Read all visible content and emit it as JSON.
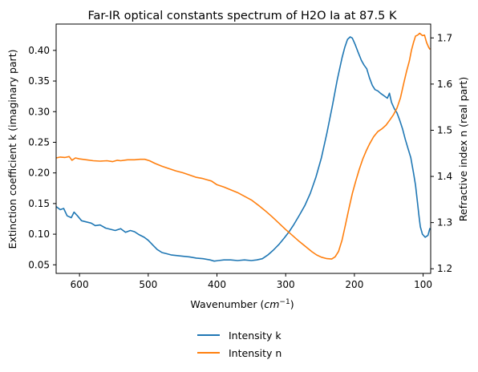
{
  "chart_data": {
    "type": "line",
    "title": "Far-IR optical constants spectrum of H2O Ia at 87.5 K",
    "xlabel_main": "Wavenumber (",
    "xlabel_unit": "cm",
    "xlabel_exp": "−1",
    "xlabel_close": ")",
    "ylabel_left": "Extinction coefficient k (imaginary part)",
    "ylabel_right": "Refractive index n (real part)",
    "x_reversed": true,
    "xlim": [
      634,
      89
    ],
    "ylim_left": [
      0.036,
      0.443
    ],
    "ylim_right": [
      1.19,
      1.73
    ],
    "x_ticks": [
      "600",
      "500",
      "400",
      "300",
      "200",
      "100"
    ],
    "y_left_ticks": [
      "0.05",
      "0.10",
      "0.15",
      "0.20",
      "0.25",
      "0.30",
      "0.35",
      "0.40"
    ],
    "y_right_ticks": [
      "1.2",
      "1.3",
      "1.4",
      "1.5",
      "1.6",
      "1.7"
    ],
    "grid": false,
    "legend_position": "bottom-center",
    "series": [
      {
        "name": "Intensity k",
        "axis": "left",
        "color": "#1f77b4",
        "points": [
          [
            634,
            0.145
          ],
          [
            628,
            0.14
          ],
          [
            623,
            0.142
          ],
          [
            618,
            0.13
          ],
          [
            612,
            0.127
          ],
          [
            608,
            0.136
          ],
          [
            603,
            0.13
          ],
          [
            597,
            0.122
          ],
          [
            590,
            0.12
          ],
          [
            583,
            0.118
          ],
          [
            577,
            0.114
          ],
          [
            570,
            0.115
          ],
          [
            562,
            0.11
          ],
          [
            555,
            0.108
          ],
          [
            548,
            0.106
          ],
          [
            540,
            0.109
          ],
          [
            533,
            0.103
          ],
          [
            526,
            0.106
          ],
          [
            520,
            0.104
          ],
          [
            513,
            0.099
          ],
          [
            506,
            0.095
          ],
          [
            500,
            0.09
          ],
          [
            493,
            0.082
          ],
          [
            487,
            0.075
          ],
          [
            480,
            0.07
          ],
          [
            473,
            0.068
          ],
          [
            466,
            0.066
          ],
          [
            458,
            0.065
          ],
          [
            450,
            0.064
          ],
          [
            440,
            0.063
          ],
          [
            430,
            0.061
          ],
          [
            420,
            0.06
          ],
          [
            410,
            0.058
          ],
          [
            404,
            0.056
          ],
          [
            398,
            0.057
          ],
          [
            390,
            0.058
          ],
          [
            380,
            0.058
          ],
          [
            370,
            0.057
          ],
          [
            360,
            0.058
          ],
          [
            350,
            0.057
          ],
          [
            342,
            0.058
          ],
          [
            334,
            0.06
          ],
          [
            326,
            0.066
          ],
          [
            318,
            0.074
          ],
          [
            310,
            0.083
          ],
          [
            302,
            0.094
          ],
          [
            295,
            0.104
          ],
          [
            288,
            0.116
          ],
          [
            280,
            0.131
          ],
          [
            272,
            0.147
          ],
          [
            264,
            0.167
          ],
          [
            256,
            0.193
          ],
          [
            248,
            0.225
          ],
          [
            240,
            0.265
          ],
          [
            232,
            0.31
          ],
          [
            225,
            0.352
          ],
          [
            218,
            0.388
          ],
          [
            214,
            0.405
          ],
          [
            210,
            0.418
          ],
          [
            206,
            0.422
          ],
          [
            203,
            0.42
          ],
          [
            199,
            0.41
          ],
          [
            195,
            0.398
          ],
          [
            190,
            0.384
          ],
          [
            186,
            0.376
          ],
          [
            182,
            0.37
          ],
          [
            178,
            0.355
          ],
          [
            174,
            0.343
          ],
          [
            170,
            0.336
          ],
          [
            166,
            0.334
          ],
          [
            162,
            0.33
          ],
          [
            157,
            0.326
          ],
          [
            152,
            0.322
          ],
          [
            149,
            0.33
          ],
          [
            146,
            0.315
          ],
          [
            142,
            0.305
          ],
          [
            138,
            0.298
          ],
          [
            134,
            0.286
          ],
          [
            130,
            0.272
          ],
          [
            126,
            0.255
          ],
          [
            122,
            0.24
          ],
          [
            118,
            0.225
          ],
          [
            114,
            0.2
          ],
          [
            111,
            0.18
          ],
          [
            108,
            0.15
          ],
          [
            106,
            0.13
          ],
          [
            104,
            0.112
          ],
          [
            101,
            0.1
          ],
          [
            97,
            0.095
          ],
          [
            93,
            0.098
          ],
          [
            90,
            0.11
          ]
        ]
      },
      {
        "name": "Intensity n",
        "axis": "right",
        "color": "#ff7f0e",
        "points": [
          [
            634,
            1.44
          ],
          [
            628,
            1.442
          ],
          [
            621,
            1.441
          ],
          [
            615,
            1.443
          ],
          [
            611,
            1.435
          ],
          [
            606,
            1.44
          ],
          [
            600,
            1.438
          ],
          [
            590,
            1.436
          ],
          [
            580,
            1.434
          ],
          [
            570,
            1.433
          ],
          [
            560,
            1.434
          ],
          [
            552,
            1.432
          ],
          [
            545,
            1.435
          ],
          [
            540,
            1.434
          ],
          [
            530,
            1.436
          ],
          [
            520,
            1.436
          ],
          [
            512,
            1.437
          ],
          [
            505,
            1.437
          ],
          [
            498,
            1.434
          ],
          [
            490,
            1.428
          ],
          [
            480,
            1.422
          ],
          [
            470,
            1.417
          ],
          [
            460,
            1.412
          ],
          [
            450,
            1.408
          ],
          [
            440,
            1.403
          ],
          [
            430,
            1.398
          ],
          [
            422,
            1.396
          ],
          [
            415,
            1.393
          ],
          [
            408,
            1.39
          ],
          [
            400,
            1.382
          ],
          [
            390,
            1.377
          ],
          [
            380,
            1.371
          ],
          [
            370,
            1.365
          ],
          [
            360,
            1.357
          ],
          [
            350,
            1.349
          ],
          [
            340,
            1.338
          ],
          [
            330,
            1.326
          ],
          [
            320,
            1.313
          ],
          [
            310,
            1.299
          ],
          [
            300,
            1.285
          ],
          [
            290,
            1.272
          ],
          [
            280,
            1.259
          ],
          [
            270,
            1.247
          ],
          [
            262,
            1.237
          ],
          [
            255,
            1.23
          ],
          [
            248,
            1.225
          ],
          [
            240,
            1.222
          ],
          [
            233,
            1.221
          ],
          [
            228,
            1.226
          ],
          [
            223,
            1.238
          ],
          [
            218,
            1.262
          ],
          [
            213,
            1.295
          ],
          [
            208,
            1.33
          ],
          [
            203,
            1.363
          ],
          [
            198,
            1.39
          ],
          [
            193,
            1.415
          ],
          [
            188,
            1.437
          ],
          [
            183,
            1.455
          ],
          [
            178,
            1.47
          ],
          [
            172,
            1.486
          ],
          [
            166,
            1.497
          ],
          [
            160,
            1.503
          ],
          [
            154,
            1.511
          ],
          [
            148,
            1.523
          ],
          [
            143,
            1.534
          ],
          [
            138,
            1.548
          ],
          [
            133,
            1.57
          ],
          [
            128,
            1.603
          ],
          [
            124,
            1.628
          ],
          [
            120,
            1.65
          ],
          [
            117,
            1.673
          ],
          [
            114,
            1.69
          ],
          [
            111,
            1.704
          ],
          [
            108,
            1.706
          ],
          [
            105,
            1.71
          ],
          [
            101,
            1.705
          ],
          [
            98,
            1.706
          ],
          [
            95,
            1.69
          ],
          [
            92,
            1.68
          ],
          [
            90,
            1.675
          ]
        ]
      }
    ]
  }
}
